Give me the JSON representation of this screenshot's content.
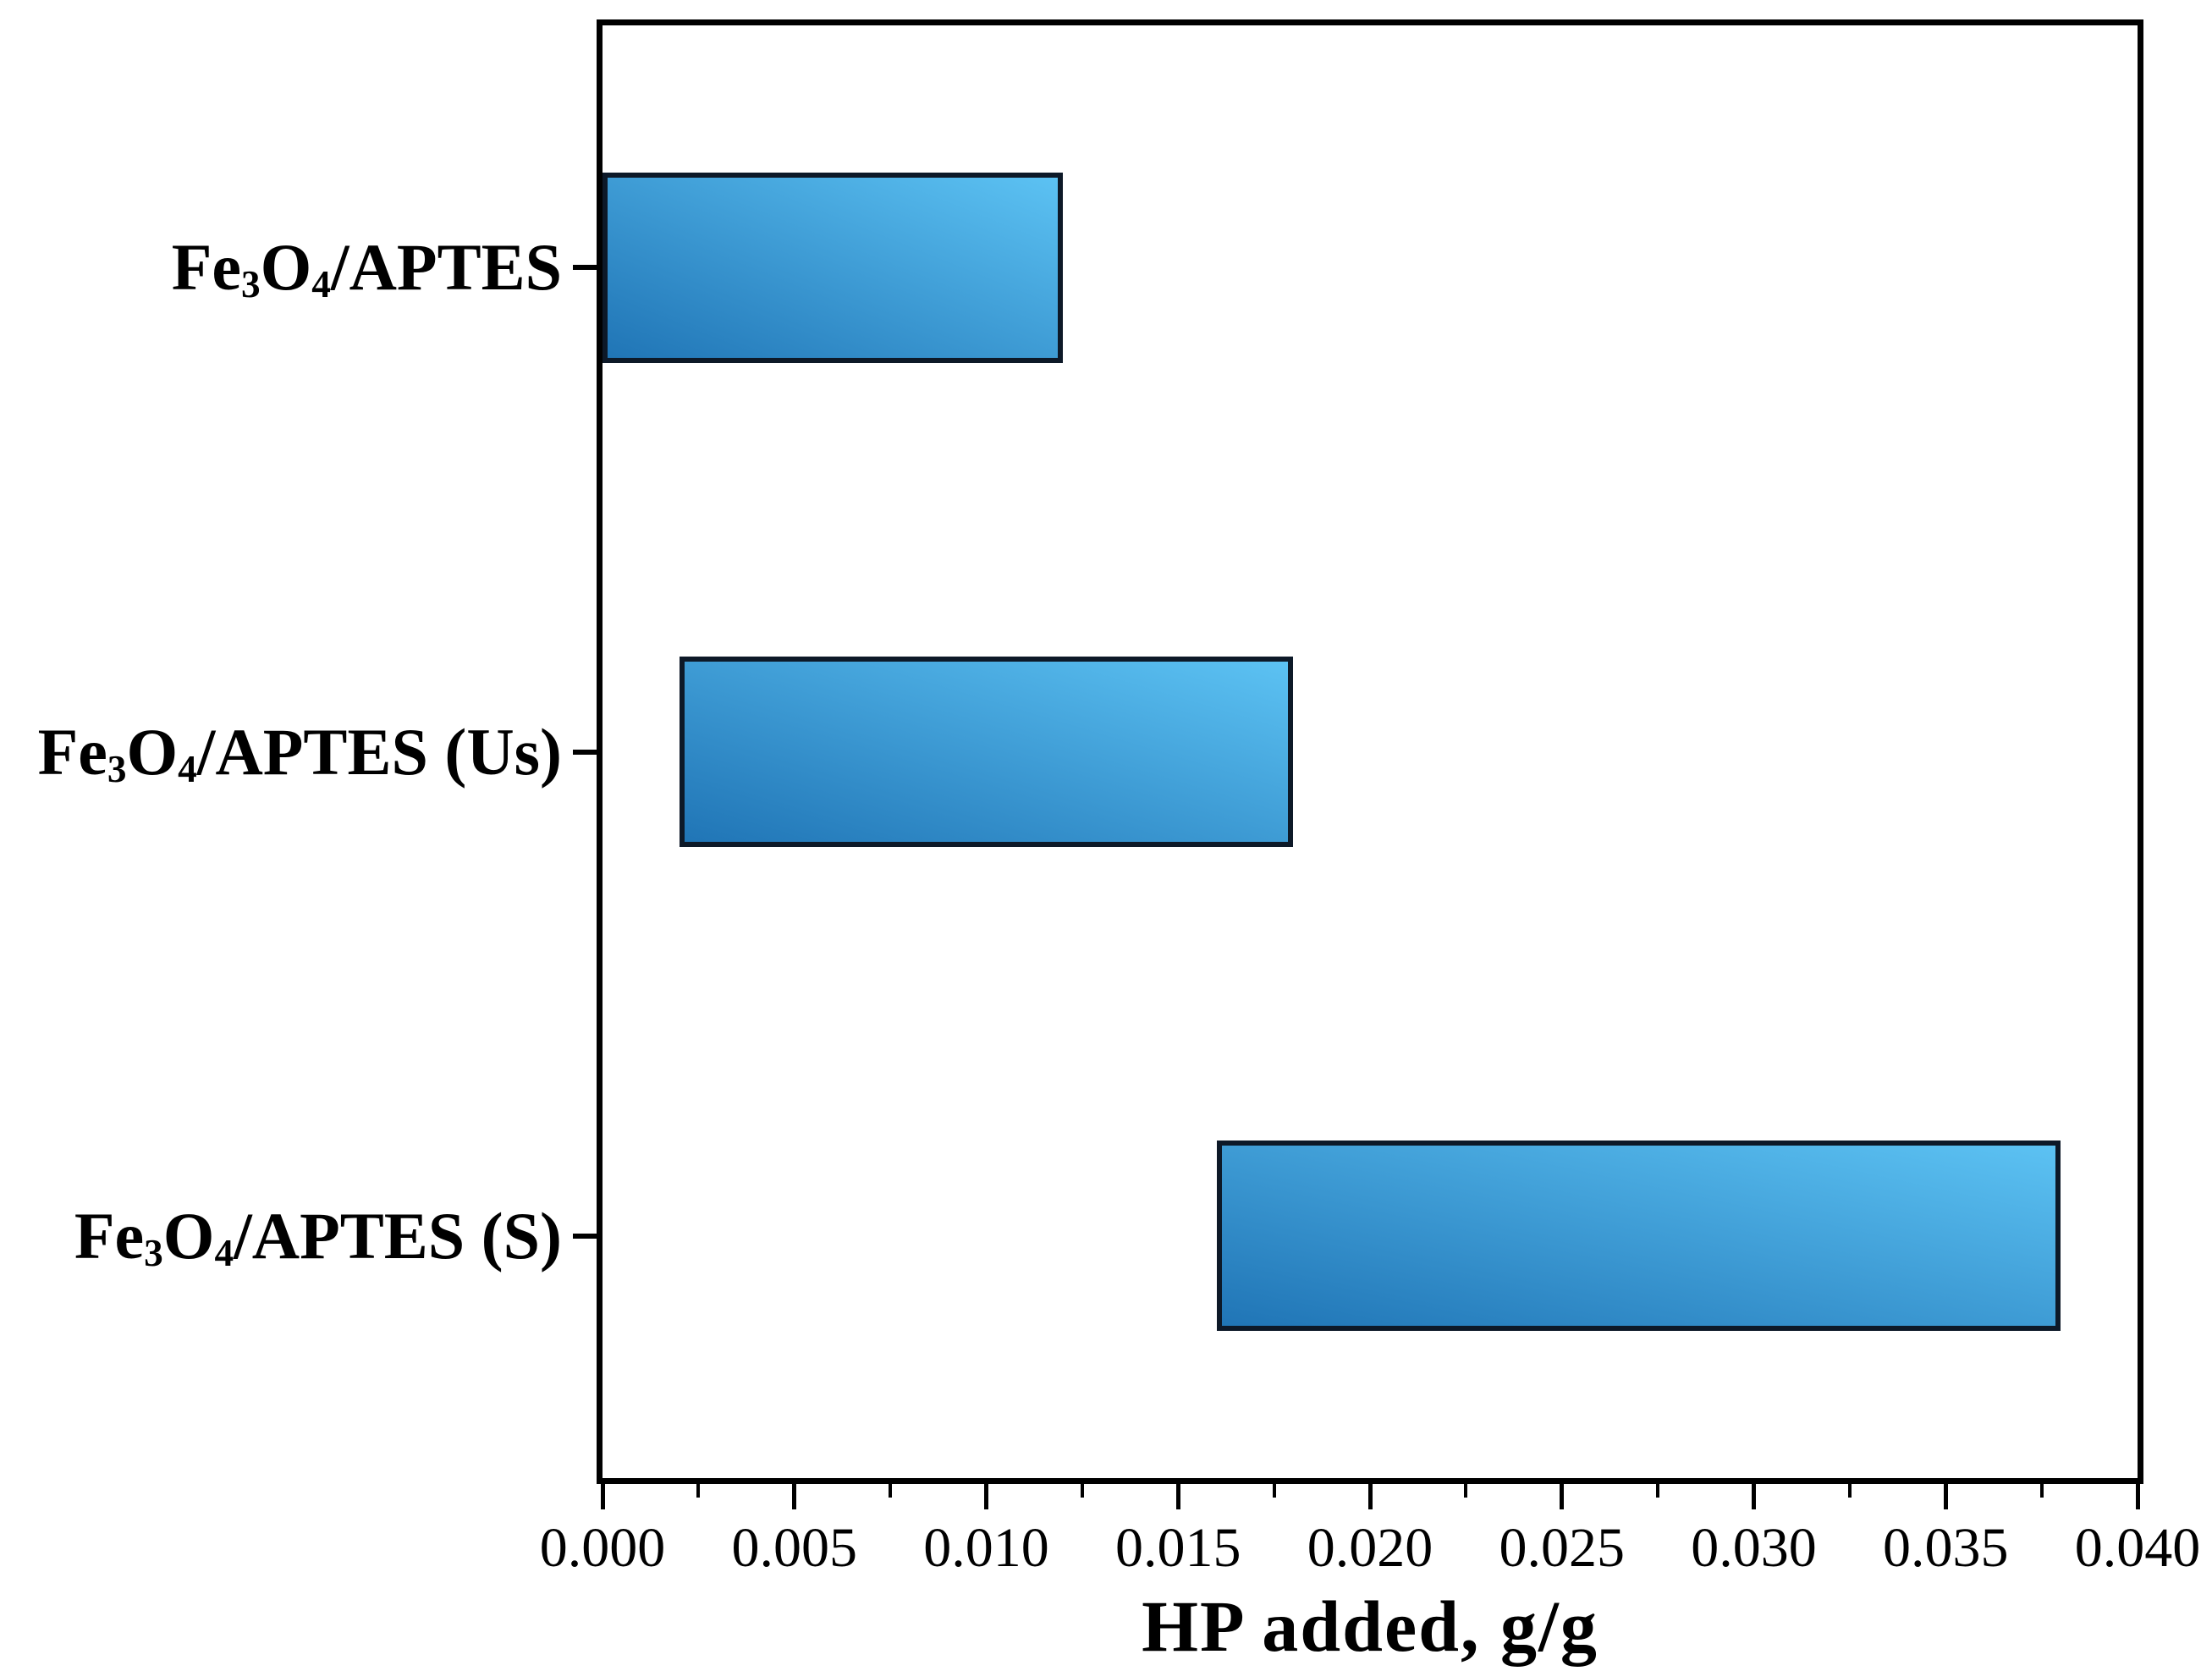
{
  "chart_data": {
    "type": "bar",
    "orientation": "horizontal-range",
    "title": "",
    "xlabel": "HP added, g/g",
    "ylabel": "",
    "xlim": [
      0,
      0.04
    ],
    "grid": false,
    "legend": null,
    "x_major_ticks": [
      "0.000",
      "0.005",
      "0.010",
      "0.015",
      "0.020",
      "0.025",
      "0.030",
      "0.035",
      "0.040"
    ],
    "x_major_tick_values": [
      0,
      0.005,
      0.01,
      0.015,
      0.02,
      0.025,
      0.03,
      0.035,
      0.04
    ],
    "x_minor_tick_values": [
      0.0025,
      0.0075,
      0.0125,
      0.0175,
      0.0225,
      0.0275,
      0.0325,
      0.0375
    ],
    "categories": [
      {
        "pre": "Fe",
        "sub1": "3",
        "mid": "O",
        "sub2": "4",
        "rest": "/APTES"
      },
      {
        "pre": "Fe",
        "sub1": "3",
        "mid": "O",
        "sub2": "4",
        "rest": "/APTES (Us)"
      },
      {
        "pre": "Fe",
        "sub1": "3",
        "mid": "O",
        "sub2": "4",
        "rest": "/APTES (S)"
      }
    ],
    "bars": [
      {
        "label": "Fe3O4/APTES",
        "start": 0.0,
        "end": 0.012
      },
      {
        "label": "Fe3O4/APTES (Us)",
        "start": 0.002,
        "end": 0.018
      },
      {
        "label": "Fe3O4/APTES (S)",
        "start": 0.016,
        "end": 0.038
      }
    ],
    "colors": {
      "bar_gradient_dark": "#2075b6",
      "bar_gradient_light": "#5cc2f3",
      "bar_border": "#0d1928",
      "axis": "#000000",
      "background": "#ffffff"
    }
  }
}
